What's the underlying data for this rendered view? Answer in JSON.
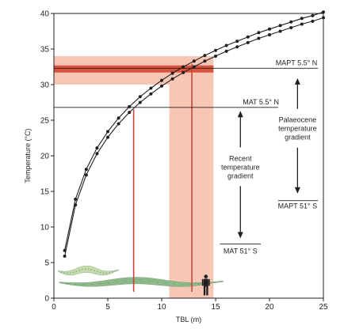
{
  "chart_data": {
    "type": "line",
    "xlabel": "TBL (m)",
    "ylabel": "Temperature (°C)",
    "xlim": [
      0,
      25
    ],
    "ylim": [
      0,
      40
    ],
    "x_ticks": [
      0,
      5,
      10,
      15,
      20,
      25
    ],
    "y_ticks": [
      0,
      5,
      10,
      15,
      20,
      25,
      30,
      35,
      40
    ],
    "grid": false,
    "legend": "none",
    "series": [
      {
        "x": [
          1,
          2,
          3,
          4,
          5,
          6,
          7,
          8,
          9,
          10,
          11,
          12,
          13,
          14,
          15,
          16,
          17,
          18,
          19,
          20,
          21,
          22,
          23,
          24,
          25
        ],
        "values": [
          6.7,
          13.9,
          18.1,
          21.1,
          23.4,
          25.3,
          26.9,
          28.3,
          29.5,
          30.6,
          31.6,
          32.5,
          33.3,
          34.1,
          34.8,
          35.5,
          36.1,
          36.7,
          37.3,
          37.8,
          38.3,
          38.8,
          39.3,
          39.7,
          40.2
        ]
      },
      {
        "x": [
          1,
          2,
          3,
          4,
          5,
          6,
          7,
          8,
          9,
          10,
          11,
          12,
          13,
          14,
          15,
          16,
          17,
          18,
          19,
          20,
          21,
          22,
          23,
          24,
          25
        ],
        "values": [
          5.9,
          13.1,
          17.3,
          20.3,
          22.6,
          24.5,
          26.1,
          27.5,
          28.7,
          29.8,
          30.8,
          31.7,
          32.5,
          33.3,
          34.0,
          34.7,
          35.3,
          35.9,
          36.5,
          37.0,
          37.5,
          38.0,
          38.5,
          38.9,
          39.4
        ]
      }
    ],
    "bands": [
      {
        "type": "horizontal",
        "y1": 30,
        "y2": 34,
        "color": "#f7c6b4"
      },
      {
        "type": "vertical",
        "x1": 10.7,
        "x2": 14.8,
        "y1": 0,
        "y2": 34,
        "color": "#f7c6b4"
      },
      {
        "type": "horizontal",
        "y1": 31.7,
        "y2": 32.7,
        "color": "#d9533f"
      }
    ],
    "reference_lines": [
      {
        "y": 32.3,
        "x1": 0,
        "x2": 24.5,
        "label": "MAPT 5.5° N",
        "label_x": 22.5
      },
      {
        "y": 26.8,
        "x1": 0,
        "x2": 20.8,
        "label": "MAT 5.5° N",
        "label_x": 19.2
      },
      {
        "y": 13.7,
        "x1": 20.8,
        "x2": 24.5,
        "label": "MAPT 51° S",
        "label_x": 22.6,
        "label_y": 12.6
      },
      {
        "y": 7.6,
        "x1": 15.4,
        "x2": 19.2,
        "label": "MAT 51° S",
        "label_x": 17.3,
        "label_y": 6.3
      }
    ],
    "drop_lines": [
      {
        "x": 7.4,
        "y": 26.5,
        "color": "#c9463a"
      },
      {
        "x": 12.8,
        "y": 32.9,
        "color": "#c9463a"
      }
    ],
    "gradient_arrows": [
      {
        "x": 17.3,
        "y_top": 26.3,
        "y_bottom": 8.4,
        "label_lines": [
          "Recent",
          "temperature",
          "gradient"
        ],
        "label_y": 19.3
      },
      {
        "x": 22.6,
        "y_top": 30.9,
        "y_bottom": 14.7,
        "label_lines": [
          "Palaeocene",
          "temperature",
          "gradient"
        ],
        "label_y": 24.7
      }
    ],
    "annotations": [
      {
        "type": "snake-silhouette",
        "x1": 0.4,
        "x2": 6.0,
        "y": 3.8,
        "color": "#c6dcae"
      },
      {
        "type": "snake-silhouette",
        "x1": 0.5,
        "x2": 15.7,
        "y": 2.2,
        "color": "#8cb88a"
      },
      {
        "type": "human-silhouette",
        "x": 14.1,
        "y_base": 0.4,
        "y_top": 3.3,
        "color": "#231f20"
      }
    ]
  }
}
